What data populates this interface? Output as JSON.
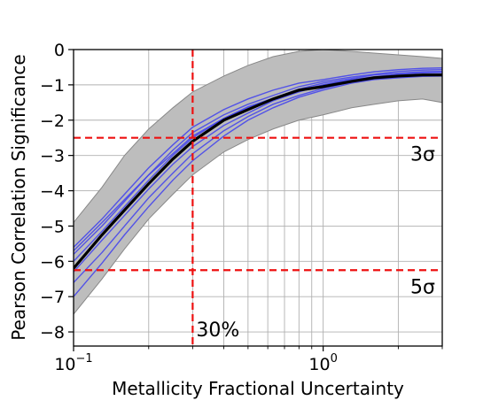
{
  "chart_data": {
    "type": "line",
    "xlabel": "Metallicity Fractional Uncertainty",
    "ylabel": "Pearson Correlation Significance",
    "xscale": "log",
    "xlim": [
      0.1,
      3.0
    ],
    "ylim": [
      -8.4,
      0
    ],
    "grid": true,
    "x_ticks": [
      {
        "value": 0.1,
        "label": "10",
        "exp": "−1"
      },
      {
        "value": 1.0,
        "label": "10",
        "exp": "0"
      }
    ],
    "y_ticks": [
      {
        "value": 0,
        "label": "0"
      },
      {
        "value": -1,
        "label": "−1"
      },
      {
        "value": -2,
        "label": "−2"
      },
      {
        "value": -3,
        "label": "−3"
      },
      {
        "value": -4,
        "label": "−4"
      },
      {
        "value": -5,
        "label": "−5"
      },
      {
        "value": -6,
        "label": "−6"
      },
      {
        "value": -7,
        "label": "−7"
      },
      {
        "value": -8,
        "label": "−8"
      }
    ],
    "x": [
      0.1,
      0.13,
      0.16,
      0.2,
      0.25,
      0.3,
      0.4,
      0.5,
      0.63,
      0.8,
      1.0,
      1.3,
      1.6,
      2.0,
      2.5,
      3.0
    ],
    "band": {
      "upper": [
        -4.9,
        -3.9,
        -3.0,
        -2.25,
        -1.65,
        -1.2,
        -0.75,
        -0.45,
        -0.2,
        -0.05,
        0.0,
        -0.05,
        -0.1,
        -0.15,
        -0.2,
        -0.25
      ],
      "lower": [
        -7.5,
        -6.5,
        -5.65,
        -4.8,
        -4.1,
        -3.55,
        -2.9,
        -2.55,
        -2.25,
        -2.0,
        -1.85,
        -1.65,
        -1.55,
        -1.45,
        -1.4,
        -1.5
      ]
    },
    "series": [
      {
        "role": "mean",
        "values": [
          -6.2,
          -5.25,
          -4.55,
          -3.8,
          -3.1,
          -2.6,
          -2.0,
          -1.7,
          -1.4,
          -1.15,
          -1.05,
          -0.9,
          -0.8,
          -0.75,
          -0.72,
          -0.72
        ]
      },
      {
        "role": "realization",
        "values": [
          -5.6,
          -4.8,
          -4.1,
          -3.35,
          -2.7,
          -2.2,
          -1.7,
          -1.4,
          -1.15,
          -0.95,
          -0.85,
          -0.72,
          -0.63,
          -0.57,
          -0.53,
          -0.52
        ]
      },
      {
        "role": "realization",
        "values": [
          -5.8,
          -5.0,
          -4.3,
          -3.55,
          -2.85,
          -2.35,
          -1.85,
          -1.55,
          -1.3,
          -1.05,
          -0.9,
          -0.78,
          -0.7,
          -0.62,
          -0.58,
          -0.57
        ]
      },
      {
        "role": "realization",
        "values": [
          -6.0,
          -5.15,
          -4.45,
          -3.7,
          -3.0,
          -2.5,
          -1.95,
          -1.62,
          -1.38,
          -1.12,
          -0.95,
          -0.82,
          -0.72,
          -0.67,
          -0.63,
          -0.62
        ]
      },
      {
        "role": "realization",
        "values": [
          -6.3,
          -5.4,
          -4.7,
          -3.95,
          -3.25,
          -2.75,
          -2.15,
          -1.8,
          -1.45,
          -1.2,
          -1.0,
          -0.85,
          -0.77,
          -0.7,
          -0.66,
          -0.65
        ]
      },
      {
        "role": "realization",
        "values": [
          -6.6,
          -5.75,
          -5.0,
          -4.2,
          -3.5,
          -2.95,
          -2.3,
          -1.9,
          -1.55,
          -1.3,
          -1.1,
          -0.92,
          -0.82,
          -0.76,
          -0.72,
          -0.7
        ]
      },
      {
        "role": "realization",
        "values": [
          -7.0,
          -6.05,
          -5.25,
          -4.45,
          -3.7,
          -3.15,
          -2.45,
          -2.0,
          -1.65,
          -1.35,
          -1.15,
          -0.95,
          -0.85,
          -0.8,
          -0.76,
          -0.75
        ]
      },
      {
        "role": "realization",
        "values": [
          -5.7,
          -4.9,
          -4.25,
          -3.55,
          -2.95,
          -2.45,
          -1.95,
          -1.65,
          -1.4,
          -1.15,
          -1.0,
          -0.88,
          -0.8,
          -0.75,
          -0.72,
          -0.7
        ]
      }
    ],
    "reference_lines": {
      "horizontal": [
        {
          "y": -2.5,
          "label": "3σ"
        },
        {
          "y": -6.25,
          "label": "5σ"
        }
      ],
      "vertical": [
        {
          "x": 0.3,
          "label": "30%"
        }
      ]
    },
    "colors": {
      "band": "#bdbdbd",
      "band_edge": "#888888",
      "mean": "#000000",
      "realization": "#3f3fef",
      "reference": "#ee1111",
      "grid": "#b0b0b0"
    }
  }
}
